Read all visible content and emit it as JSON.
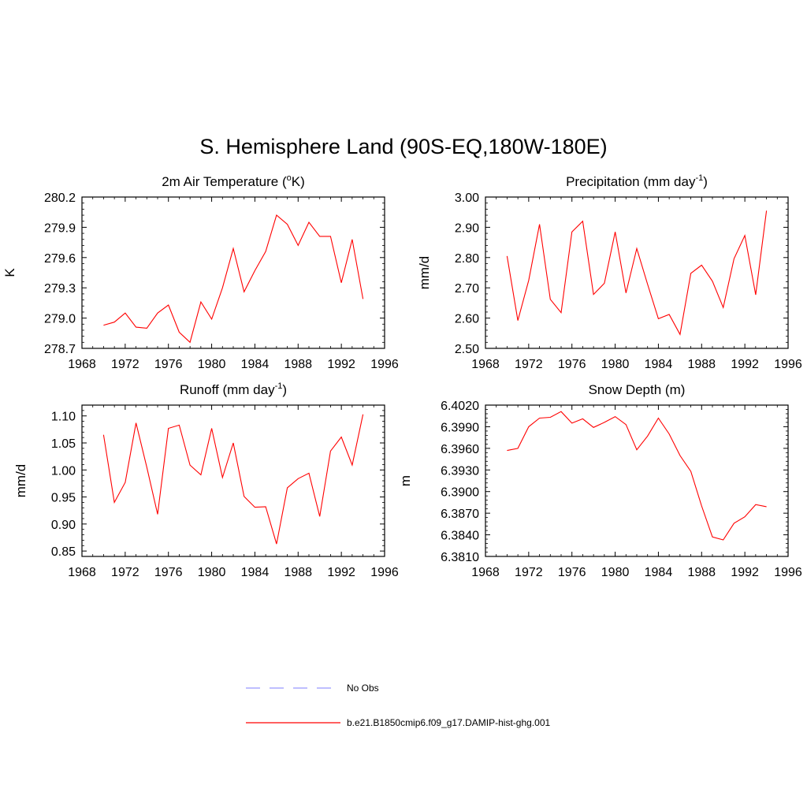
{
  "figure": {
    "title": "S. Hemisphere Land (90S-EQ,180W-180E)"
  },
  "legend": {
    "entries": [
      {
        "label": "No Obs",
        "color": "#9999ff",
        "style": "dashed"
      },
      {
        "label": "b.e21.B1850cmip6.f09_g17.DAMIP-hist-ghg.001",
        "color": "#ff0000",
        "style": "solid"
      }
    ]
  },
  "chart_data": [
    {
      "type": "line",
      "title_main": "2m Air Temperature (",
      "title_sup": "o",
      "title_tail": "K)",
      "ylabel": "K",
      "xlim": [
        1968,
        1996
      ],
      "ylim": [
        278.7,
        280.2
      ],
      "x_ticks": [
        1968,
        1972,
        1976,
        1980,
        1984,
        1988,
        1992,
        1996
      ],
      "x_tick_labels": [
        "1968",
        "1972",
        "1976",
        "1980",
        "1984",
        "1988",
        "1992",
        "1996"
      ],
      "y_ticks": [
        278.7,
        279.0,
        279.3,
        279.6,
        279.9,
        280.2
      ],
      "y_tick_labels": [
        "278.7",
        "279.0",
        "279.3",
        "279.6",
        "279.9",
        "280.2"
      ],
      "series": [
        {
          "color": "#ff0000",
          "x": [
            1970,
            1971,
            1972,
            1973,
            1974,
            1975,
            1976,
            1977,
            1978,
            1979,
            1980,
            1981,
            1982,
            1983,
            1984,
            1985,
            1986,
            1987,
            1988,
            1989,
            1990,
            1991,
            1992,
            1993,
            1994
          ],
          "y": [
            278.93,
            278.96,
            279.05,
            278.91,
            278.9,
            279.05,
            279.13,
            278.86,
            278.76,
            279.16,
            278.99,
            279.3,
            279.69,
            279.26,
            279.47,
            279.66,
            280.02,
            279.93,
            279.72,
            279.95,
            279.81,
            279.81,
            279.35,
            279.78,
            279.19
          ]
        }
      ]
    },
    {
      "type": "line",
      "title_main": "Precipitation (mm day",
      "title_sup": "-1",
      "title_tail": ")",
      "ylabel": "mm/d",
      "xlim": [
        1968,
        1996
      ],
      "ylim": [
        2.5,
        3.0
      ],
      "x_ticks": [
        1968,
        1972,
        1976,
        1980,
        1984,
        1988,
        1992,
        1996
      ],
      "x_tick_labels": [
        "1968",
        "1972",
        "1976",
        "1980",
        "1984",
        "1988",
        "1992",
        "1996"
      ],
      "y_ticks": [
        2.5,
        2.6,
        2.7,
        2.8,
        2.9,
        3.0
      ],
      "y_tick_labels": [
        "2.50",
        "2.60",
        "2.70",
        "2.80",
        "2.90",
        "3.00"
      ],
      "series": [
        {
          "color": "#ff0000",
          "x": [
            1970,
            1971,
            1972,
            1973,
            1974,
            1975,
            1976,
            1977,
            1978,
            1979,
            1980,
            1981,
            1982,
            1983,
            1984,
            1985,
            1986,
            1987,
            1988,
            1989,
            1990,
            1991,
            1992,
            1993,
            1994
          ],
          "y": [
            2.805,
            2.592,
            2.725,
            2.91,
            2.662,
            2.618,
            2.885,
            2.92,
            2.678,
            2.715,
            2.885,
            2.683,
            2.83,
            2.712,
            2.598,
            2.612,
            2.546,
            2.748,
            2.775,
            2.722,
            2.635,
            2.796,
            2.873,
            2.677,
            2.955
          ]
        }
      ]
    },
    {
      "type": "line",
      "title_main": "Runoff (mm day",
      "title_sup": "-1",
      "title_tail": ")",
      "ylabel": "mm/d",
      "xlim": [
        1968,
        1996
      ],
      "ylim": [
        0.84,
        1.12
      ],
      "x_ticks": [
        1968,
        1972,
        1976,
        1980,
        1984,
        1988,
        1992,
        1996
      ],
      "x_tick_labels": [
        "1968",
        "1972",
        "1976",
        "1980",
        "1984",
        "1988",
        "1992",
        "1996"
      ],
      "y_ticks": [
        0.85,
        0.9,
        0.95,
        1.0,
        1.05,
        1.1
      ],
      "y_tick_labels": [
        "0.85",
        "0.90",
        "0.95",
        "1.00",
        "1.05",
        "1.10"
      ],
      "series": [
        {
          "color": "#ff0000",
          "x": [
            1970,
            1971,
            1972,
            1973,
            1974,
            1975,
            1976,
            1977,
            1978,
            1979,
            1980,
            1981,
            1982,
            1983,
            1984,
            1985,
            1986,
            1987,
            1988,
            1989,
            1990,
            1991,
            1992,
            1993,
            1994
          ],
          "y": [
            1.065,
            0.94,
            0.977,
            1.087,
            1.005,
            0.918,
            1.077,
            1.083,
            1.009,
            0.991,
            1.077,
            0.986,
            1.05,
            0.951,
            0.931,
            0.932,
            0.863,
            0.967,
            0.984,
            0.994,
            0.914,
            1.035,
            1.061,
            1.009,
            1.103
          ]
        }
      ]
    },
    {
      "type": "line",
      "title_main": "Snow Depth (m)",
      "title_sup": "",
      "title_tail": "",
      "ylabel": "m",
      "xlim": [
        1968,
        1996
      ],
      "ylim": [
        6.381,
        6.402
      ],
      "x_ticks": [
        1968,
        1972,
        1976,
        1980,
        1984,
        1988,
        1992,
        1996
      ],
      "x_tick_labels": [
        "1968",
        "1972",
        "1976",
        "1980",
        "1984",
        "1988",
        "1992",
        "1996"
      ],
      "y_ticks": [
        6.381,
        6.384,
        6.387,
        6.39,
        6.393,
        6.396,
        6.399,
        6.402
      ],
      "y_tick_labels": [
        "6.3810",
        "6.3840",
        "6.3870",
        "6.3900",
        "6.3930",
        "6.3960",
        "6.3990",
        "6.4020"
      ],
      "series": [
        {
          "color": "#ff0000",
          "x": [
            1970,
            1971,
            1972,
            1973,
            1974,
            1975,
            1976,
            1977,
            1978,
            1979,
            1980,
            1981,
            1982,
            1983,
            1984,
            1985,
            1986,
            1987,
            1988,
            1989,
            1990,
            1991,
            1992,
            1993,
            1994
          ],
          "y": [
            6.3957,
            6.396,
            6.399,
            6.4002,
            6.4003,
            6.4011,
            6.3995,
            6.4001,
            6.3989,
            6.3996,
            6.4004,
            6.3993,
            6.3958,
            6.3977,
            6.4002,
            6.398,
            6.395,
            6.3928,
            6.388,
            6.3837,
            6.3833,
            6.3856,
            6.3865,
            6.3882,
            6.3879
          ]
        }
      ]
    }
  ]
}
